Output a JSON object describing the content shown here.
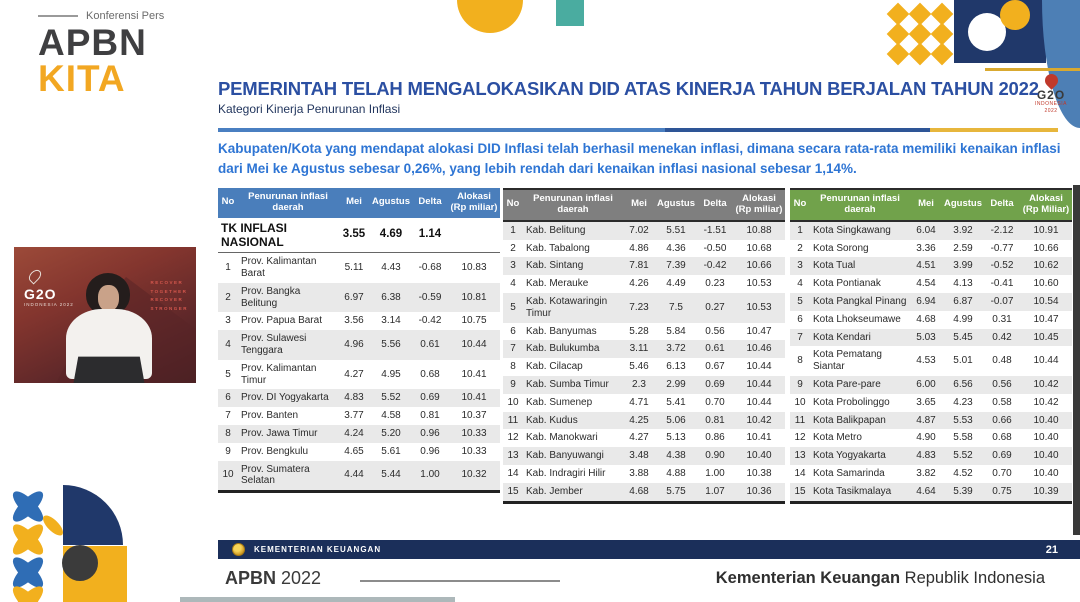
{
  "branding": {
    "event_label": "Konferensi Pers",
    "logo_line1": "APBN",
    "logo_line2": "KITA"
  },
  "g20_badge": {
    "text": "G2O",
    "sub1": "INDONESIA",
    "sub2": "2022"
  },
  "header": {
    "title": "PEMERINTAH TELAH MENGALOKASIKAN DID ATAS KINERJA TAHUN BERJALAN TAHUN 2022",
    "subtitle": "Kategori Kinerja Penurunan Inflasi",
    "paragraph": "Kabupaten/Kota yang mendapat alokasi DID Inflasi telah berhasil menekan inflasi, dimana secara rata-rata memiliki kenaikan inflasi dari Mei ke Agustus sebesar 0,26%, yang lebih rendah dari kenaikan inflasi nasional sebesar 1,14%."
  },
  "video_overlay": {
    "g20_text": "G2O",
    "g20_sub": "INDONESIA 2022",
    "slogan": [
      "RECOVER",
      "TOGETHER",
      "RECOVER",
      "STRONGER"
    ]
  },
  "tables": [
    {
      "name": "provinsi",
      "header_color": "#4a7ebb",
      "stripe": "even",
      "columns": [
        "No",
        "Penurunan inflasi daerah",
        "Mei",
        "Agustus",
        "Delta",
        "Alokasi (Rp miliar)"
      ],
      "summary_row": {
        "label": "TK INFLASI NASIONAL",
        "mei": "3.55",
        "agustus": "4.69",
        "delta": "1.14",
        "alokasi": ""
      },
      "rows": [
        [
          "1",
          "Prov. Kalimantan Barat",
          "5.11",
          "4.43",
          "-0.68",
          "10.83"
        ],
        [
          "2",
          "Prov. Bangka Belitung",
          "6.97",
          "6.38",
          "-0.59",
          "10.81"
        ],
        [
          "3",
          "Prov. Papua Barat",
          "3.56",
          "3.14",
          "-0.42",
          "10.75"
        ],
        [
          "4",
          "Prov. Sulawesi Tenggara",
          "4.96",
          "5.56",
          "0.61",
          "10.44"
        ],
        [
          "5",
          "Prov. Kalimantan Timur",
          "4.27",
          "4.95",
          "0.68",
          "10.41"
        ],
        [
          "6",
          "Prov. DI Yogyakarta",
          "4.83",
          "5.52",
          "0.69",
          "10.41"
        ],
        [
          "7",
          "Prov. Banten",
          "3.77",
          "4.58",
          "0.81",
          "10.37"
        ],
        [
          "8",
          "Prov. Jawa Timur",
          "4.24",
          "5.20",
          "0.96",
          "10.33"
        ],
        [
          "9",
          "Prov. Bengkulu",
          "4.65",
          "5.61",
          "0.96",
          "10.33"
        ],
        [
          "10",
          "Prov. Sumatera Selatan",
          "4.44",
          "5.44",
          "1.00",
          "10.32"
        ]
      ]
    },
    {
      "name": "kabupaten",
      "header_color": "#7f7f7f",
      "stripe": "odd",
      "columns": [
        "No",
        "Penurunan inflasi daerah",
        "Mei",
        "Agustus",
        "Delta",
        "Alokasi (Rp miliar)"
      ],
      "rows": [
        [
          "1",
          "Kab. Belitung",
          "7.02",
          "5.51",
          "-1.51",
          "10.88"
        ],
        [
          "2",
          "Kab. Tabalong",
          "4.86",
          "4.36",
          "-0.50",
          "10.68"
        ],
        [
          "3",
          "Kab. Sintang",
          "7.81",
          "7.39",
          "-0.42",
          "10.66"
        ],
        [
          "4",
          "Kab. Merauke",
          "4.26",
          "4.49",
          "0.23",
          "10.53"
        ],
        [
          "5",
          "Kab. Kotawaringin Timur",
          "7.23",
          "7.5",
          "0.27",
          "10.53"
        ],
        [
          "6",
          "Kab. Banyumas",
          "5.28",
          "5.84",
          "0.56",
          "10.47"
        ],
        [
          "7",
          "Kab. Bulukumba",
          "3.11",
          "3.72",
          "0.61",
          "10.46"
        ],
        [
          "8",
          "Kab. Cilacap",
          "5.46",
          "6.13",
          "0.67",
          "10.44"
        ],
        [
          "9",
          "Kab. Sumba Timur",
          "2.3",
          "2.99",
          "0.69",
          "10.44"
        ],
        [
          "10",
          "Kab. Sumenep",
          "4.71",
          "5.41",
          "0.70",
          "10.44"
        ],
        [
          "11",
          "Kab. Kudus",
          "4.25",
          "5.06",
          "0.81",
          "10.42"
        ],
        [
          "12",
          "Kab. Manokwari",
          "4.27",
          "5.13",
          "0.86",
          "10.41"
        ],
        [
          "13",
          "Kab. Banyuwangi",
          "3.48",
          "4.38",
          "0.90",
          "10.40"
        ],
        [
          "14",
          "Kab. Indragiri Hilir",
          "3.88",
          "4.88",
          "1.00",
          "10.38"
        ],
        [
          "15",
          "Kab. Jember",
          "4.68",
          "5.75",
          "1.07",
          "10.36"
        ]
      ]
    },
    {
      "name": "kota",
      "header_color": "#71a24b",
      "stripe": "odd",
      "columns": [
        "No",
        "Penurunan inflasi daerah",
        "Mei",
        "Agustus",
        "Delta",
        "Alokasi (Rp Miliar)"
      ],
      "rows": [
        [
          "1",
          "Kota Singkawang",
          "6.04",
          "3.92",
          "-2.12",
          "10.91"
        ],
        [
          "2",
          "Kota Sorong",
          "3.36",
          "2.59",
          "-0.77",
          "10.66"
        ],
        [
          "3",
          "Kota Tual",
          "4.51",
          "3.99",
          "-0.52",
          "10.62"
        ],
        [
          "4",
          "Kota Pontianak",
          "4.54",
          "4.13",
          "-0.41",
          "10.60"
        ],
        [
          "5",
          "Kota Pangkal Pinang",
          "6.94",
          "6.87",
          "-0.07",
          "10.54"
        ],
        [
          "6",
          "Kota Lhokseumawe",
          "4.68",
          "4.99",
          "0.31",
          "10.47"
        ],
        [
          "7",
          "Kota Kendari",
          "5.03",
          "5.45",
          "0.42",
          "10.45"
        ],
        [
          "8",
          "Kota Pematang Siantar",
          "4.53",
          "5.01",
          "0.48",
          "10.44"
        ],
        [
          "9",
          "Kota Pare-pare",
          "6.00",
          "6.56",
          "0.56",
          "10.42"
        ],
        [
          "10",
          "Kota Probolinggo",
          "3.65",
          "4.23",
          "0.58",
          "10.42"
        ],
        [
          "11",
          "Kota Balikpapan",
          "4.87",
          "5.53",
          "0.66",
          "10.40"
        ],
        [
          "12",
          "Kota Metro",
          "4.90",
          "5.58",
          "0.68",
          "10.40"
        ],
        [
          "13",
          "Kota Yogyakarta",
          "4.83",
          "5.52",
          "0.69",
          "10.40"
        ],
        [
          "14",
          "Kota Samarinda",
          "3.82",
          "4.52",
          "0.70",
          "10.40"
        ],
        [
          "15",
          "Kota Tasikmalaya",
          "4.64",
          "5.39",
          "0.75",
          "10.39"
        ]
      ]
    }
  ],
  "footer": {
    "ministry_bar": "KEMENTERIAN KEUANGAN",
    "page_number": "21",
    "apbn_bold": "APBN",
    "apbn_year": " 2022",
    "ministry_bold": "Kementerian Keuangan",
    "ministry_rest": " Republik Indonesia"
  },
  "colors": {
    "accent_gold": "#f2b01e",
    "accent_navy": "#20386a",
    "accent_teal": "#2a9d8f",
    "title_blue": "#2b4fa2",
    "paragraph_blue": "#2e75d4",
    "footer_navy": "#1b2f5a",
    "table1_header": "#4a7ebb",
    "table2_header": "#7f7f7f",
    "table3_header": "#71a24b"
  }
}
